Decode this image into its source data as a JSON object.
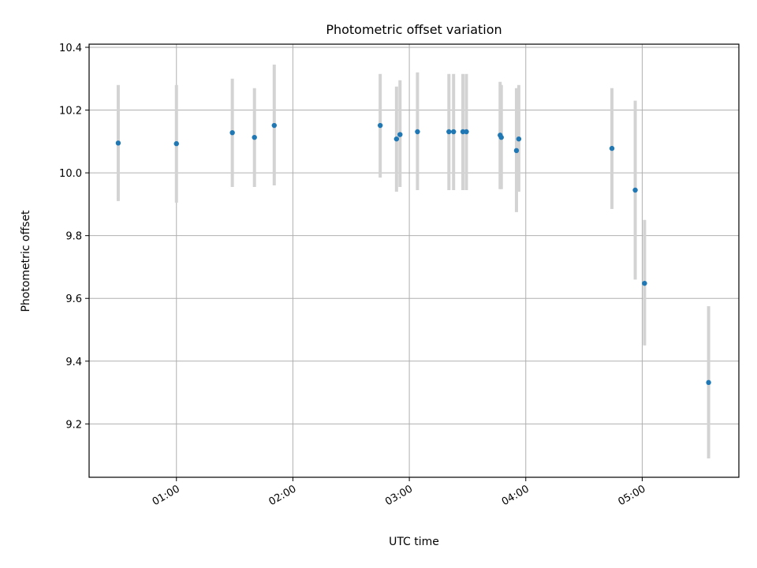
{
  "chart_data": {
    "type": "scatter",
    "title": "Photometric offset variation",
    "xlabel": "UTC time",
    "ylabel": "Photometric offset",
    "x_unit": "hours UTC",
    "xlim": [
      0.25,
      5.83
    ],
    "ylim": [
      9.03,
      10.41
    ],
    "x_ticks": [
      {
        "value": 1,
        "label": "01:00"
      },
      {
        "value": 2,
        "label": "02:00"
      },
      {
        "value": 3,
        "label": "03:00"
      },
      {
        "value": 4,
        "label": "04:00"
      },
      {
        "value": 5,
        "label": "05:00"
      }
    ],
    "y_ticks": [
      {
        "value": 9.2,
        "label": "9.2"
      },
      {
        "value": 9.4,
        "label": "9.4"
      },
      {
        "value": 9.6,
        "label": "9.6"
      },
      {
        "value": 9.8,
        "label": "9.8"
      },
      {
        "value": 10.0,
        "label": "10.0"
      },
      {
        "value": 10.2,
        "label": "10.2"
      },
      {
        "value": 10.4,
        "label": "10.4"
      }
    ],
    "grid": true,
    "point_color": "#1f77b4",
    "errorbar_color": "#d3d3d3",
    "points": [
      {
        "x": 0.5,
        "y": 10.095,
        "lo": 9.91,
        "hi": 10.28
      },
      {
        "x": 1.0,
        "y": 10.093,
        "lo": 9.905,
        "hi": 10.28
      },
      {
        "x": 1.48,
        "y": 10.128,
        "lo": 9.955,
        "hi": 10.3
      },
      {
        "x": 1.67,
        "y": 10.113,
        "lo": 9.955,
        "hi": 10.27
      },
      {
        "x": 1.84,
        "y": 10.151,
        "lo": 9.96,
        "hi": 10.345
      },
      {
        "x": 2.75,
        "y": 10.151,
        "lo": 9.985,
        "hi": 10.315
      },
      {
        "x": 2.89,
        "y": 10.108,
        "lo": 9.94,
        "hi": 10.275
      },
      {
        "x": 2.92,
        "y": 10.122,
        "lo": 9.955,
        "hi": 10.295
      },
      {
        "x": 3.07,
        "y": 10.131,
        "lo": 9.945,
        "hi": 10.32
      },
      {
        "x": 3.34,
        "y": 10.131,
        "lo": 9.945,
        "hi": 10.315
      },
      {
        "x": 3.38,
        "y": 10.131,
        "lo": 9.945,
        "hi": 10.315
      },
      {
        "x": 3.46,
        "y": 10.131,
        "lo": 9.945,
        "hi": 10.315
      },
      {
        "x": 3.49,
        "y": 10.131,
        "lo": 9.945,
        "hi": 10.315
      },
      {
        "x": 3.78,
        "y": 10.12,
        "lo": 9.948,
        "hi": 10.29
      },
      {
        "x": 3.79,
        "y": 10.113,
        "lo": 9.948,
        "hi": 10.28
      },
      {
        "x": 3.92,
        "y": 10.071,
        "lo": 9.875,
        "hi": 10.27
      },
      {
        "x": 3.94,
        "y": 10.108,
        "lo": 9.94,
        "hi": 10.28
      },
      {
        "x": 4.74,
        "y": 10.078,
        "lo": 9.885,
        "hi": 10.27
      },
      {
        "x": 4.94,
        "y": 9.945,
        "lo": 9.66,
        "hi": 10.23
      },
      {
        "x": 5.02,
        "y": 9.648,
        "lo": 9.45,
        "hi": 9.85
      },
      {
        "x": 5.57,
        "y": 9.332,
        "lo": 9.09,
        "hi": 9.575
      }
    ]
  }
}
